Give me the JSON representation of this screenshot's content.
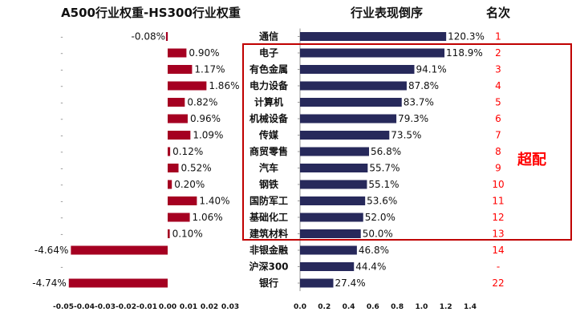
{
  "colors": {
    "left_bar": "#a50021",
    "right_bar": "#27295b",
    "highlight": "#ff0000",
    "box": "#c00000"
  },
  "chart_data": [
    {
      "type": "bar",
      "orientation": "horizontal",
      "title": "A500行业权重-HS300行业权重",
      "categories": [
        "通信",
        "电子",
        "有色金属",
        "电力设备",
        "计算机",
        "机械设备",
        "传媒",
        "商贸零售",
        "汽车",
        "钢铁",
        "国防军工",
        "基础化工",
        "建筑材料",
        "非银金融",
        "沪深300",
        "银行"
      ],
      "values": [
        -0.0008,
        0.009,
        0.0117,
        0.0186,
        0.0082,
        0.0096,
        0.0109,
        0.0012,
        0.0052,
        0.002,
        0.014,
        0.0106,
        0.001,
        -0.0464,
        null,
        -0.0474
      ],
      "labels": [
        "-0.08%",
        "0.90%",
        "1.17%",
        "1.86%",
        "0.82%",
        "0.96%",
        "1.09%",
        "0.12%",
        "0.52%",
        "0.20%",
        "1.40%",
        "1.06%",
        "0.10%",
        "-4.64%",
        "",
        "-4.74%"
      ],
      "xlim": [
        -0.05,
        0.03
      ],
      "ticks": [
        "-0.05",
        "-0.04",
        "-0.03",
        "-0.02",
        "-0.01",
        "0.00",
        "0.01",
        "0.02",
        "0.03"
      ]
    },
    {
      "type": "bar",
      "orientation": "horizontal",
      "title": "行业表现倒序",
      "categories": [
        "通信",
        "电子",
        "有色金属",
        "电力设备",
        "计算机",
        "机械设备",
        "传媒",
        "商贸零售",
        "汽车",
        "钢铁",
        "国防军工",
        "基础化工",
        "建筑材料",
        "非银金融",
        "沪深300",
        "银行"
      ],
      "values": [
        1.203,
        1.189,
        0.941,
        0.878,
        0.837,
        0.793,
        0.735,
        0.568,
        0.557,
        0.551,
        0.536,
        0.52,
        0.5,
        0.468,
        0.444,
        0.274
      ],
      "labels": [
        "120.3%",
        "118.9%",
        "94.1%",
        "87.8%",
        "83.7%",
        "79.3%",
        "73.5%",
        "56.8%",
        "55.7%",
        "55.1%",
        "53.6%",
        "52.0%",
        "50.0%",
        "46.8%",
        "44.4%",
        "27.4%"
      ],
      "xlim": [
        0,
        1.4
      ],
      "ticks": [
        "0.0",
        "0.2",
        "0.4",
        "0.6",
        "0.8",
        "1.0",
        "1.2",
        "1.4"
      ]
    }
  ],
  "rank_title": "名次",
  "ranks": [
    "1",
    "2",
    "3",
    "4",
    "5",
    "6",
    "7",
    "8",
    "9",
    "10",
    "11",
    "12",
    "13",
    "14",
    "-",
    "22"
  ],
  "highlight_label": "超配",
  "left_dash": "-"
}
